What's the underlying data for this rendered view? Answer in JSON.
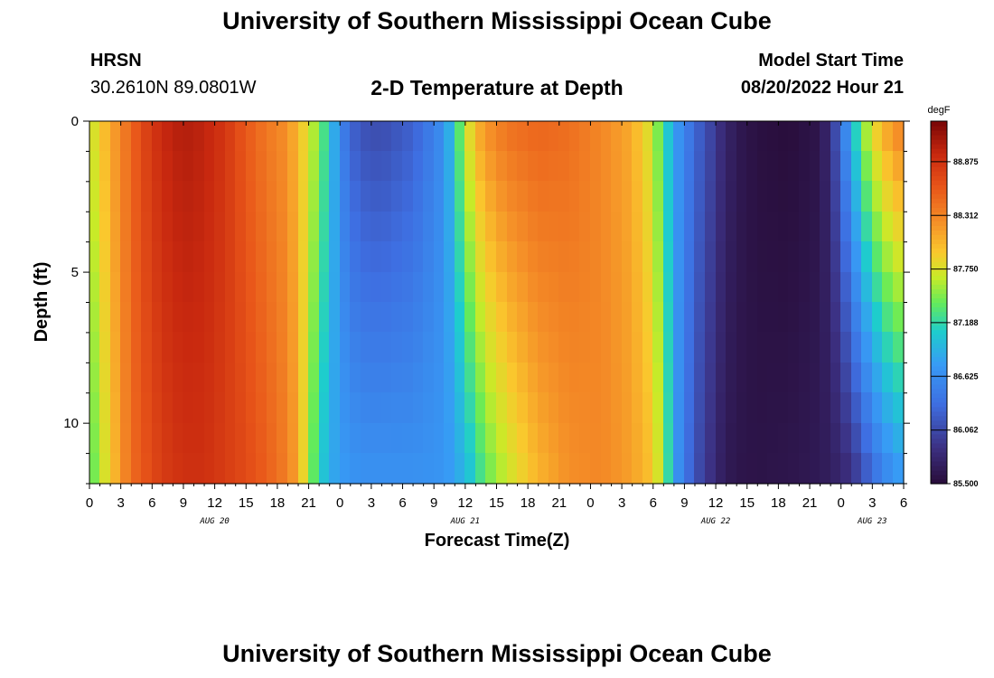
{
  "header": {
    "title": "University of Southern Mississippi Ocean Cube",
    "station_code": "HRSN",
    "station_coords": "30.2610N  89.0801W",
    "plot_title": "2-D Temperature at Depth",
    "model_start_label": "Model Start Time",
    "model_start_value": "08/20/2022 Hour 21"
  },
  "footer": {
    "title": "University of Southern Mississippi Ocean Cube"
  },
  "chart_data": {
    "type": "heatmap",
    "title": "2-D Temperature at Depth",
    "xlabel": "Forecast Time(Z)",
    "ylabel": "Depth (ft)",
    "x_start": "08/20/2022 Hour 0",
    "x_range_hours": [
      0,
      78
    ],
    "ylim": [
      0,
      12
    ],
    "y_inverted": true,
    "y_ticks": [
      0,
      5,
      10
    ],
    "x_tick_labels": [
      "0",
      "3",
      "6",
      "9",
      "12",
      "15",
      "18",
      "21",
      "0",
      "3",
      "6",
      "9",
      "12",
      "15",
      "18",
      "21",
      "0",
      "3",
      "6",
      "9",
      "12",
      "15",
      "18",
      "21",
      "0",
      "3",
      "6"
    ],
    "day_labels": [
      {
        "label": "AUG 20",
        "hour": 12
      },
      {
        "label": "AUG 21",
        "hour": 36
      },
      {
        "label": "AUG 22",
        "hour": 60
      },
      {
        "label": "AUG 23",
        "hour": 75
      }
    ],
    "colorbar": {
      "unit": "degF",
      "ticks": [
        "88.875",
        "88.312",
        "87.750",
        "87.188",
        "86.625",
        "86.062",
        "85.500"
      ],
      "range": [
        85.5,
        89.3
      ]
    },
    "depths_ft": [
      0.5,
      1.5,
      2.5,
      3.5,
      4.5,
      5.5,
      6.5,
      7.5,
      8.5,
      9.5,
      10.5,
      11.5
    ],
    "profile_hours": [
      0,
      1,
      2,
      3,
      4,
      5,
      7,
      9,
      11,
      13,
      15,
      17,
      19,
      20,
      21,
      22,
      23,
      24,
      25,
      26,
      28,
      31,
      34,
      35,
      36,
      37,
      38,
      40,
      43,
      46,
      49,
      52,
      53.5,
      55,
      56,
      58,
      60,
      61,
      62.5,
      64,
      67,
      70,
      71,
      72,
      73,
      74,
      75,
      76,
      77,
      78
    ],
    "profile_surface": [
      87.6,
      87.9,
      88.1,
      88.3,
      88.5,
      88.7,
      88.95,
      89.05,
      89.0,
      88.85,
      88.6,
      88.4,
      88.25,
      88.0,
      87.75,
      87.45,
      87.1,
      86.6,
      86.3,
      86.15,
      86.1,
      86.25,
      86.65,
      87.1,
      87.6,
      88.0,
      88.2,
      88.4,
      88.5,
      88.45,
      88.3,
      88.1,
      87.8,
      87.3,
      86.8,
      86.3,
      85.95,
      85.75,
      85.62,
      85.55,
      85.52,
      85.6,
      85.85,
      86.3,
      86.85,
      87.4,
      87.75,
      88.0,
      88.2,
      88.3
    ],
    "profile_bottom": [
      87.3,
      87.6,
      87.9,
      88.2,
      88.45,
      88.6,
      88.8,
      88.9,
      88.9,
      88.8,
      88.7,
      88.55,
      88.35,
      88.1,
      87.6,
      87.15,
      86.9,
      86.75,
      86.7,
      86.65,
      86.65,
      86.65,
      86.7,
      86.8,
      86.95,
      87.15,
      87.4,
      87.7,
      88.05,
      88.25,
      88.3,
      88.15,
      88.0,
      87.6,
      86.8,
      86.15,
      85.8,
      85.65,
      85.6,
      85.58,
      85.6,
      85.65,
      85.7,
      85.78,
      85.9,
      86.1,
      86.35,
      86.55,
      86.7,
      86.8
    ]
  }
}
